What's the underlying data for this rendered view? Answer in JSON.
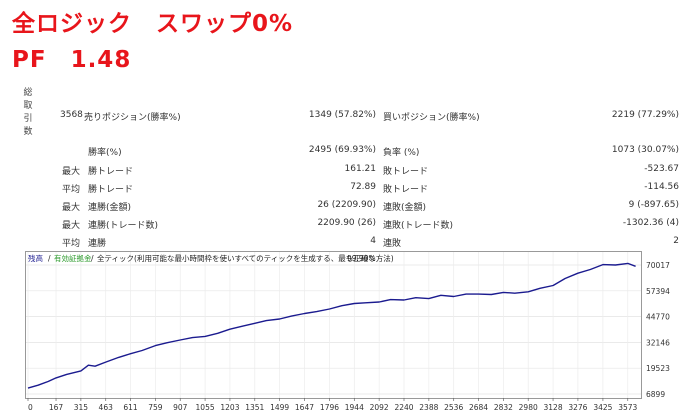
{
  "header": {
    "title": "全ロジック　スワップ0%",
    "pf": "PF　1.48"
  },
  "stats": {
    "total_trades_label": "総取引数",
    "total_trades_value": "3568",
    "short_label": "売りポジション(勝率%)",
    "short_value": "1349 (57.82%)",
    "long_label": "買いポジション(勝率%)",
    "long_value": "2219 (77.29%)",
    "win_rate_label": "勝率(%)",
    "win_rate_value": "2495 (69.93%)",
    "loss_rate_label": "負率 (%)",
    "loss_rate_value": "1073 (30.07%)",
    "max_label": "最大",
    "avg_label": "平均",
    "max_win_label": "勝トレード",
    "max_win_value": "161.21",
    "max_loss_label": "敗トレード",
    "max_loss_value": "-523.67",
    "avg_win_label": "勝トレード",
    "avg_win_value": "72.89",
    "avg_loss_label": "敗トレード",
    "avg_loss_value": "-114.56",
    "max_consec_win_amt_label": "連勝(金額)",
    "max_consec_win_amt_value": "26 (2209.90)",
    "max_consec_loss_amt_label": "連敗(金額)",
    "max_consec_loss_amt_value": "9 (-897.65)",
    "max_consec_win_cnt_label": "連勝(トレード数)",
    "max_consec_win_cnt_value": "2209.90 (26)",
    "max_consec_loss_cnt_label": "連敗(トレード数)",
    "max_consec_loss_cnt_value": "-1302.36 (4)",
    "avg_consec_win_label": "連勝",
    "avg_consec_win_value": "4",
    "avg_consec_loss_label": "連敗",
    "avg_consec_loss_value": "2"
  },
  "chart_legend": {
    "balance": "残高",
    "equity": "有効証拠金",
    "model": "全ティック(利用可能な最小時間枠を使いすべてのティックを生成する、最も正確な方法)",
    "quality": "99.90%",
    "sep1": "/",
    "sep2": "/"
  },
  "chart_data": {
    "type": "line",
    "title": "",
    "xlabel": "",
    "ylabel": "",
    "x_ticks": [
      "0",
      "167",
      "315",
      "463",
      "611",
      "759",
      "907",
      "1055",
      "1203",
      "1351",
      "1499",
      "1647",
      "1796",
      "1944",
      "2092",
      "2240",
      "2388",
      "2536",
      "2684",
      "2832",
      "2980",
      "3128",
      "3276",
      "3425",
      "3573"
    ],
    "y_ticks": [
      "70017",
      "57394",
      "44770",
      "32146",
      "19523",
      "6899"
    ],
    "xlim": [
      0,
      3640
    ],
    "ylim": [
      6899,
      70017
    ],
    "series": [
      {
        "name": "残高",
        "color": "#1b1b8f",
        "x": [
          0,
          60,
          120,
          167,
          230,
          315,
          360,
          400,
          463,
          540,
          611,
          680,
          759,
          830,
          907,
          980,
          1055,
          1130,
          1203,
          1280,
          1351,
          1420,
          1499,
          1570,
          1647,
          1720,
          1796,
          1870,
          1944,
          2010,
          2092,
          2160,
          2240,
          2310,
          2388,
          2460,
          2536,
          2610,
          2684,
          2760,
          2832,
          2900,
          2980,
          3050,
          3128,
          3200,
          3276,
          3350,
          3425,
          3500,
          3573,
          3620
        ],
        "values": [
          9800,
          11200,
          13000,
          14800,
          16500,
          18200,
          21000,
          20500,
          22500,
          24800,
          26600,
          28200,
          30600,
          32000,
          33300,
          34500,
          35100,
          36600,
          38600,
          40100,
          41500,
          42800,
          43600,
          45000,
          46300,
          47200,
          48500,
          50100,
          51200,
          51500,
          51900,
          53100,
          52900,
          54000,
          53600,
          55200,
          54600,
          55800,
          55800,
          55600,
          56600,
          56200,
          56900,
          58600,
          60000,
          63400,
          66000,
          67800,
          70200,
          70000,
          70800,
          69400
        ]
      }
    ],
    "grid": true,
    "legend": "top-left"
  }
}
